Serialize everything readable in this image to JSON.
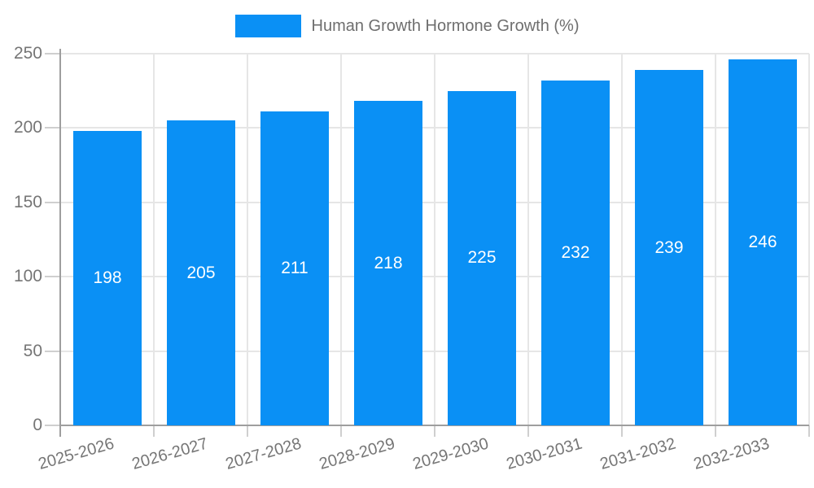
{
  "chart_data": {
    "type": "bar",
    "title": "Human Growth Hormone Growth (%)",
    "legend": {
      "label": "Human Growth Hormone Growth (%)",
      "position": "top-center"
    },
    "categories": [
      "2025-2026",
      "2026-2027",
      "2027-2028",
      "2028-2029",
      "2029-2030",
      "2030-2031",
      "2031-2032",
      "2032-2033"
    ],
    "values": [
      198,
      205,
      211,
      218,
      225,
      232,
      239,
      246
    ],
    "data_labels": [
      "198",
      "205",
      "211",
      "218",
      "225",
      "232",
      "239",
      "246"
    ],
    "xlabel": "",
    "ylabel": "",
    "ylim": [
      0,
      250
    ],
    "yticks": [
      0,
      50,
      100,
      150,
      200,
      250
    ],
    "grid": true,
    "colors": {
      "bar": "#0a90f5",
      "data_label": "#ffffff",
      "axis": "#9e9e9e",
      "gridline": "#e6e6e6",
      "tick": "#cfcfcf",
      "axis_text": "#757575",
      "legend_text": "#6e6e6e",
      "background": "#ffffff"
    }
  }
}
